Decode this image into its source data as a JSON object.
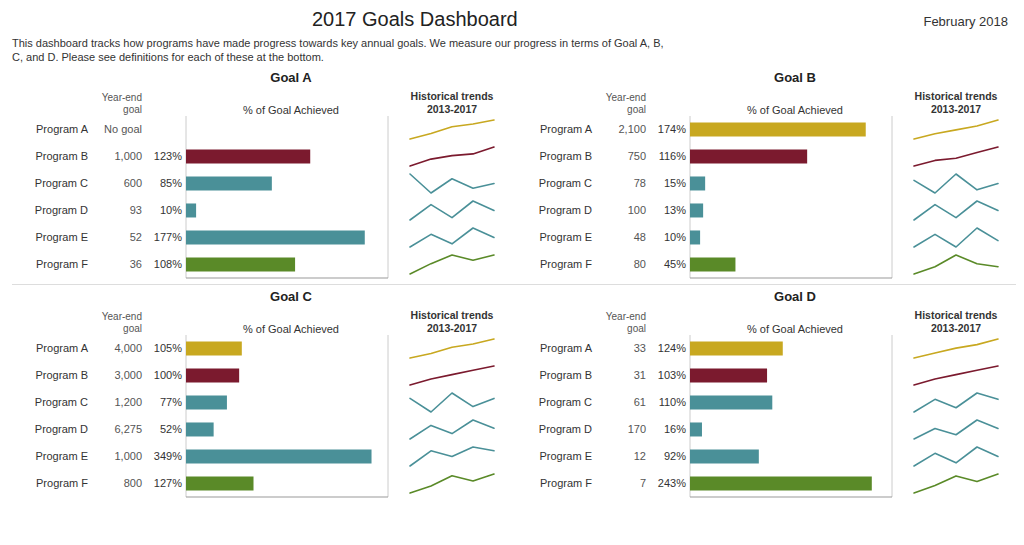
{
  "title": "2017 Goals Dashboard",
  "annotations": [
    "February 2018"
  ],
  "subtitle": "This dashboard tracks how programs have made progress towards key annual goals. We measure our progress in terms of Goal A, B,\nC, and D. Please see definitions for each of these at the bottom.",
  "chart_data": [
    {
      "type": "bar",
      "orientation": "horizontal",
      "title": "Goal A",
      "xlabel": "% of Goal Achieved",
      "year_end_goals_label": "Year-end goal",
      "categories": [
        "Program A",
        "Program B",
        "Program C",
        "Program D",
        "Program E",
        "Program F"
      ],
      "year_end_goals": [
        "No goal",
        "1,000",
        "600",
        "93",
        "52",
        "36"
      ],
      "values": [
        null,
        123,
        85,
        10,
        177,
        108
      ],
      "value_labels": [
        null,
        "123%",
        "85%",
        "10%",
        "177%",
        "108%"
      ],
      "data_labels": true,
      "colors": [
        "#c8a820",
        "#7b1a2e",
        "#4a9098",
        "#4a9098",
        "#4a9098",
        "#5a8a28"
      ],
      "xlim": [
        0,
        200
      ],
      "xticks": [
        100
      ],
      "grid": true,
      "tick_labels": false
    },
    {
      "type": "line",
      "title": "Historical trends",
      "subtitle": "2013-2017",
      "tick_labels": false,
      "series": [
        {
          "color": "#c8a820",
          "values": [
            10,
            30,
            55,
            65,
            80
          ]
        },
        {
          "color": "#7b1a2e",
          "values": [
            30,
            38,
            42,
            44,
            52
          ]
        },
        {
          "color": "#4a9098",
          "values": [
            48,
            32,
            44,
            36,
            40
          ]
        },
        {
          "color": "#4a9098",
          "values": [
            42,
            55,
            44,
            58,
            50
          ]
        },
        {
          "color": "#4a9098",
          "values": [
            28,
            32,
            29,
            34,
            31
          ]
        },
        {
          "color": "#5a8a28",
          "values": [
            22,
            28,
            33,
            30,
            33
          ]
        }
      ]
    },
    {
      "type": "bar",
      "orientation": "horizontal",
      "title": "Goal B",
      "xlabel": "% of Goal Achieved",
      "year_end_goals_label": "Year-end goal",
      "categories": [
        "Program A",
        "Program B",
        "Program C",
        "Program D",
        "Program E",
        "Program F"
      ],
      "year_end_goals": [
        "2,100",
        "750",
        "78",
        "100",
        "48",
        "80"
      ],
      "values": [
        174,
        116,
        15,
        13,
        10,
        45
      ],
      "value_labels": [
        "174%",
        "116%",
        "15%",
        "13%",
        "10%",
        "45%"
      ],
      "data_labels": true,
      "colors": [
        "#c8a820",
        "#7b1a2e",
        "#4a9098",
        "#4a9098",
        "#4a9098",
        "#5a8a28"
      ],
      "xlim": [
        0,
        200
      ],
      "xticks": [
        100
      ],
      "grid": true,
      "tick_labels": false
    },
    {
      "type": "line",
      "title": "Historical trends",
      "subtitle": "2013-2017",
      "tick_labels": false,
      "series": [
        {
          "color": "#c8a820",
          "values": [
            28,
            42,
            52,
            62,
            78
          ]
        },
        {
          "color": "#7b1a2e",
          "values": [
            32,
            42,
            46,
            56,
            66
          ]
        },
        {
          "color": "#4a9098",
          "values": [
            52,
            44,
            56,
            46,
            50
          ]
        },
        {
          "color": "#4a9098",
          "values": [
            42,
            55,
            44,
            58,
            50
          ]
        },
        {
          "color": "#4a9098",
          "values": [
            22,
            24,
            22,
            25,
            23
          ]
        },
        {
          "color": "#5a8a28",
          "values": [
            15,
            20,
            28,
            22,
            20
          ]
        }
      ]
    },
    {
      "type": "bar",
      "orientation": "horizontal",
      "title": "Goal C",
      "xlabel": "% of Goal Achieved",
      "year_end_goals_label": "Year-end goal",
      "categories": [
        "Program A",
        "Program B",
        "Program C",
        "Program D",
        "Program E",
        "Program F"
      ],
      "year_end_goals": [
        "4,000",
        "3,000",
        "1,200",
        "6,275",
        "1,000",
        "800"
      ],
      "values": [
        105,
        100,
        77,
        52,
        349,
        127
      ],
      "value_labels": [
        "105%",
        "100%",
        "77%",
        "52%",
        "349%",
        "127%"
      ],
      "data_labels": true,
      "colors": [
        "#c8a820",
        "#7b1a2e",
        "#4a9098",
        "#4a9098",
        "#4a9098",
        "#5a8a28"
      ],
      "xlim": [
        0,
        380
      ],
      "xticks": [
        100
      ],
      "grid": true,
      "tick_labels": false
    },
    {
      "type": "line",
      "title": "Historical trends",
      "subtitle": "2013-2017",
      "tick_labels": false,
      "series": [
        {
          "color": "#c8a820",
          "values": [
            18,
            32,
            52,
            62,
            78
          ]
        },
        {
          "color": "#7b1a2e",
          "values": [
            22,
            36,
            46,
            56,
            66
          ]
        },
        {
          "color": "#4a9098",
          "values": [
            42,
            32,
            46,
            36,
            42
          ]
        },
        {
          "color": "#4a9098",
          "values": [
            32,
            42,
            36,
            46,
            40
          ]
        },
        {
          "color": "#4a9098",
          "values": [
            22,
            30,
            27,
            32,
            30
          ]
        },
        {
          "color": "#5a8a28",
          "values": [
            12,
            20,
            32,
            26,
            34
          ]
        }
      ]
    },
    {
      "type": "bar",
      "orientation": "horizontal",
      "title": "Goal D",
      "xlabel": "% of Goal Achieved",
      "year_end_goals_label": "Year-end goal",
      "categories": [
        "Program A",
        "Program B",
        "Program C",
        "Program D",
        "Program E",
        "Program F"
      ],
      "year_end_goals": [
        "33",
        "31",
        "61",
        "170",
        "12",
        "7"
      ],
      "values": [
        124,
        103,
        110,
        16,
        92,
        243
      ],
      "value_labels": [
        "124%",
        "103%",
        "110%",
        "16%",
        "92%",
        "243%"
      ],
      "data_labels": true,
      "colors": [
        "#c8a820",
        "#7b1a2e",
        "#4a9098",
        "#4a9098",
        "#4a9098",
        "#5a8a28"
      ],
      "xlim": [
        0,
        270
      ],
      "xticks": [
        100
      ],
      "grid": true,
      "tick_labels": false
    },
    {
      "type": "line",
      "title": "Historical trends",
      "subtitle": "2013-2017",
      "tick_labels": false,
      "series": [
        {
          "color": "#c8a820",
          "values": [
            24,
            38,
            52,
            62,
            78
          ]
        },
        {
          "color": "#7b1a2e",
          "values": [
            22,
            36,
            46,
            56,
            66
          ]
        },
        {
          "color": "#4a9098",
          "values": [
            32,
            44,
            36,
            50,
            44
          ]
        },
        {
          "color": "#4a9098",
          "values": [
            32,
            42,
            36,
            50,
            42
          ]
        },
        {
          "color": "#4a9098",
          "values": [
            22,
            26,
            23,
            28,
            25
          ]
        },
        {
          "color": "#5a8a28",
          "values": [
            12,
            20,
            30,
            24,
            32
          ]
        }
      ]
    }
  ]
}
